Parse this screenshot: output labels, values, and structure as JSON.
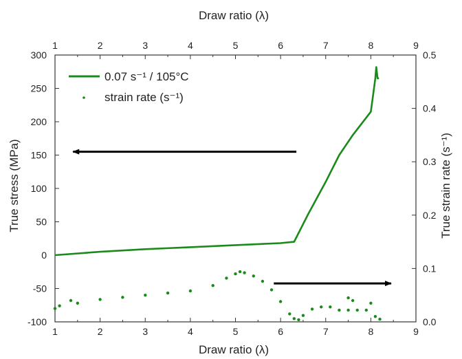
{
  "chart_data": {
    "type": "line",
    "title": "",
    "xlabel_bottom": "Draw ratio (λ)",
    "xlabel_top": "Draw ratio (λ)",
    "ylabel_left": "True stress (MPa)",
    "ylabel_right": "True strain rate (s⁻¹)",
    "xlim": [
      1,
      9
    ],
    "ylim_left": [
      -100,
      300
    ],
    "ylim_right": [
      0.0,
      0.5
    ],
    "x_ticks": [
      "1",
      "2",
      "3",
      "4",
      "5",
      "6",
      "7",
      "8",
      "9"
    ],
    "y_left_ticks": [
      "300",
      "250",
      "200",
      "150",
      "100",
      "50",
      "0",
      "-50",
      "-100"
    ],
    "y_right_ticks": [
      "0.5",
      "0.4",
      "0.3",
      "0.2",
      "0.1",
      "0.0"
    ],
    "legend_placement": "top-left",
    "grid": false,
    "colors": {
      "series": "#1a8a1a",
      "arrow": "#000000"
    },
    "series": [
      {
        "name": "0.07 s⁻¹ / 105°C",
        "axis": "left",
        "style": "line",
        "x": [
          1.0,
          2.0,
          3.0,
          4.0,
          5.0,
          6.0,
          6.3,
          6.6,
          7.0,
          7.3,
          7.6,
          8.0,
          8.05,
          8.1,
          8.12,
          8.15,
          8.18
        ],
        "y": [
          0,
          5,
          9,
          12,
          15,
          18,
          20,
          60,
          110,
          150,
          180,
          215,
          240,
          265,
          282,
          265,
          265
        ]
      },
      {
        "name": "strain rate (s⁻¹)",
        "axis": "right",
        "style": "scatter",
        "x": [
          1.0,
          1.1,
          1.5,
          2.0,
          2.5,
          3.0,
          3.5,
          4.0,
          4.5,
          4.8,
          5.0,
          5.1,
          5.2,
          5.4,
          5.6,
          5.8,
          6.0,
          6.2,
          6.3,
          6.4,
          6.5,
          6.7,
          6.9,
          7.1,
          7.3,
          7.5,
          7.7,
          7.9,
          8.0,
          8.1,
          8.2,
          1.35,
          7.5,
          7.6
        ],
        "y": [
          0.025,
          0.03,
          0.035,
          0.042,
          0.046,
          0.05,
          0.054,
          0.058,
          0.068,
          0.082,
          0.09,
          0.094,
          0.092,
          0.086,
          0.076,
          0.06,
          0.038,
          0.015,
          0.006,
          0.004,
          0.012,
          0.024,
          0.028,
          0.028,
          0.022,
          0.022,
          0.022,
          0.022,
          0.035,
          0.01,
          0.005,
          0.04,
          0.045,
          0.04
        ]
      }
    ],
    "annotations": [
      {
        "type": "arrow",
        "direction": "left",
        "axis": "left",
        "x_from": 6.35,
        "x_to": 1.4,
        "y": 155
      },
      {
        "type": "arrow",
        "direction": "right",
        "axis": "right",
        "x_from": 5.85,
        "x_to": 8.45,
        "y": 0.072
      }
    ]
  }
}
